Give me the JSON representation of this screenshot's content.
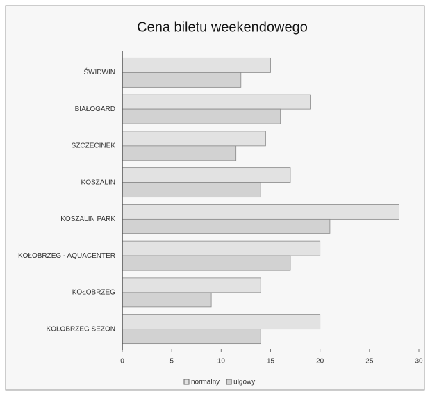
{
  "chart_data": {
    "type": "bar",
    "orientation": "horizontal",
    "title": "Cena biletu weekendowego",
    "categories": [
      "ŚWIDWIN",
      "BIAŁOGARD",
      "SZCZECINEK",
      "KOSZALIN",
      "KOSZALIN PARK",
      "KOŁOBRZEG - AQUACENTER",
      "KOŁOBRZEG",
      "KOŁOBRZEG SEZON"
    ],
    "series": [
      {
        "name": "normalny",
        "color": "#e2e2e2",
        "values": [
          15,
          19,
          14.5,
          17,
          28,
          20,
          14,
          20
        ]
      },
      {
        "name": "ulgowy",
        "color": "#d2d2d2",
        "values": [
          12,
          16,
          11.5,
          14,
          21,
          17,
          9,
          14
        ]
      }
    ],
    "xlim": [
      0,
      30
    ],
    "xticks": [
      0,
      5,
      10,
      15,
      20,
      25,
      30
    ],
    "grid": false,
    "legend": "bottom"
  }
}
